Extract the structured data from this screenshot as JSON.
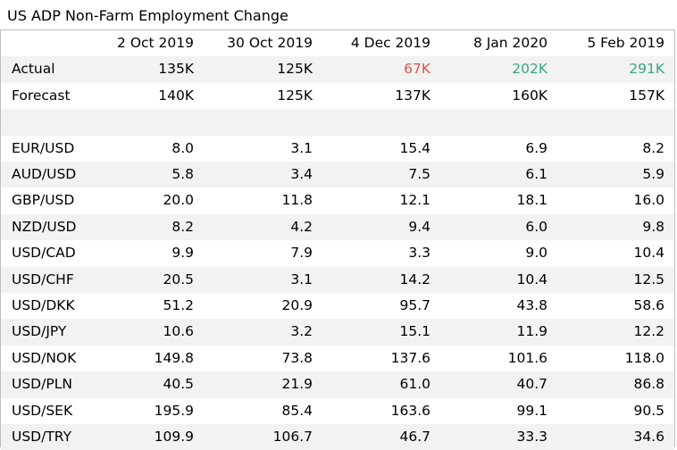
{
  "title": "US ADP Non-Farm Employment Change",
  "colors": {
    "negative": "#d9534f",
    "positive": "#3aa57a",
    "row_shade": "#f2f2f2",
    "border": "#bfbfbf"
  },
  "chart_data": {
    "type": "table",
    "title": "US ADP Non-Farm Employment Change",
    "columns": [
      "",
      "2 Oct 2019",
      "30 Oct 2019",
      "4 Dec 2019",
      "8 Jan 2020",
      "5 Feb 2019"
    ],
    "headline": [
      {
        "label": "Actual",
        "values": [
          "135K",
          "125K",
          "67K",
          "202K",
          "291K"
        ],
        "colors": [
          "",
          "",
          "negative",
          "positive",
          "positive"
        ]
      },
      {
        "label": "Forecast",
        "values": [
          "140K",
          "125K",
          "137K",
          "160K",
          "157K"
        ],
        "colors": [
          "",
          "",
          "",
          "",
          ""
        ]
      }
    ],
    "pairs": [
      {
        "label": "EUR/USD",
        "values": [
          "8.0",
          "3.1",
          "15.4",
          "6.9",
          "8.2"
        ]
      },
      {
        "label": "AUD/USD",
        "values": [
          "5.8",
          "3.4",
          "7.5",
          "6.1",
          "5.9"
        ]
      },
      {
        "label": "GBP/USD",
        "values": [
          "20.0",
          "11.8",
          "12.1",
          "18.1",
          "16.0"
        ]
      },
      {
        "label": "NZD/USD",
        "values": [
          "8.2",
          "4.2",
          "9.4",
          "6.0",
          "9.8"
        ]
      },
      {
        "label": "USD/CAD",
        "values": [
          "9.9",
          "7.9",
          "3.3",
          "9.0",
          "10.4"
        ]
      },
      {
        "label": "USD/CHF",
        "values": [
          "20.5",
          "3.1",
          "14.2",
          "10.4",
          "12.5"
        ]
      },
      {
        "label": "USD/DKK",
        "values": [
          "51.2",
          "20.9",
          "95.7",
          "43.8",
          "58.6"
        ]
      },
      {
        "label": "USD/JPY",
        "values": [
          "10.6",
          "3.2",
          "15.1",
          "11.9",
          "12.2"
        ]
      },
      {
        "label": "USD/NOK",
        "values": [
          "149.8",
          "73.8",
          "137.6",
          "101.6",
          "118.0"
        ]
      },
      {
        "label": "USD/PLN",
        "values": [
          "40.5",
          "21.9",
          "61.0",
          "40.7",
          "86.8"
        ]
      },
      {
        "label": "USD/SEK",
        "values": [
          "195.9",
          "85.4",
          "163.6",
          "99.1",
          "90.5"
        ]
      },
      {
        "label": "USD/TRY",
        "values": [
          "109.9",
          "106.7",
          "46.7",
          "33.3",
          "34.6"
        ]
      }
    ]
  }
}
